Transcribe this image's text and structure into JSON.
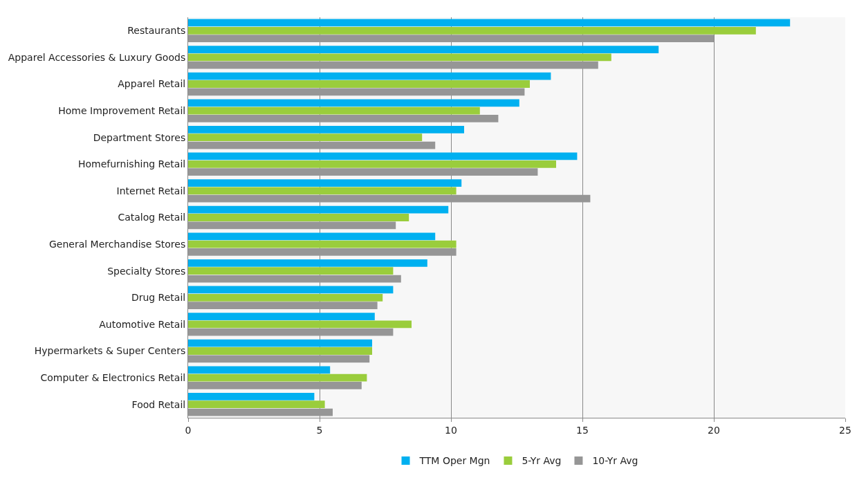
{
  "chart_data": {
    "type": "bar",
    "orientation": "horizontal",
    "categories": [
      "Restaurants",
      "Apparel Accessories & Luxury Goods",
      "Apparel Retail",
      "Home Improvement Retail",
      "Department Stores",
      "Homefurnishing Retail",
      "Internet Retail",
      "Catalog Retail",
      "General Merchandise Stores",
      "Specialty Stores",
      "Drug Retail",
      "Automotive Retail",
      "Hypermarkets & Super Centers",
      "Computer & Electronics Retail",
      "Food Retail"
    ],
    "series": [
      {
        "name": "TTM Oper Mgn",
        "color": "#00b0f0",
        "values": [
          22.9,
          17.9,
          13.8,
          12.6,
          10.5,
          14.8,
          10.4,
          9.9,
          9.4,
          9.1,
          7.8,
          7.1,
          7.0,
          5.4,
          4.8
        ]
      },
      {
        "name": "5-Yr Avg",
        "color": "#9acd3c",
        "values": [
          21.6,
          16.1,
          13.0,
          11.1,
          8.9,
          14.0,
          10.2,
          8.4,
          10.2,
          7.8,
          7.4,
          8.5,
          7.0,
          6.8,
          5.2
        ]
      },
      {
        "name": "10-Yr Avg",
        "color": "#969696",
        "values": [
          20.0,
          15.6,
          12.8,
          11.8,
          9.4,
          13.3,
          15.3,
          7.9,
          10.2,
          8.1,
          7.2,
          7.8,
          6.9,
          6.6,
          5.5
        ]
      }
    ],
    "xlim": [
      0,
      25
    ],
    "xticks": [
      0,
      5,
      10,
      15,
      20,
      25
    ],
    "grid": "x",
    "legend": "bottom"
  }
}
